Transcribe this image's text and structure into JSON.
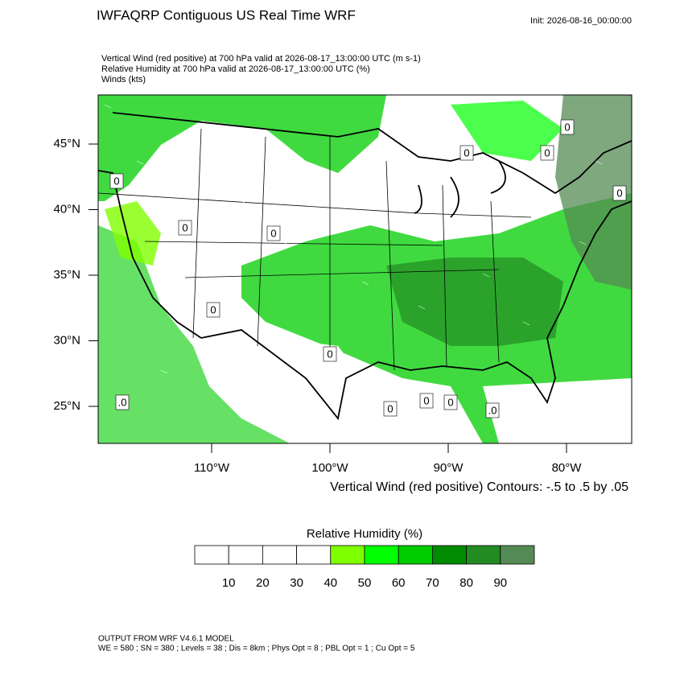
{
  "header": {
    "title": "IWFAQRP Contiguous US Real Time WRF",
    "init": "Init: 2026-08-16_00:00:00"
  },
  "subtitles": [
    "Vertical Wind (red positive) at 700 hPa valid at 2026-08-17_13:00:00 UTC   (m s-1)",
    "Relative Humidity at 700 hPa valid at 2026-08-17_13:00:00 UTC   (%)",
    "Winds   (kts)"
  ],
  "map": {
    "lat_labels": [
      "45°N",
      "40°N",
      "35°N",
      "30°N",
      "25°N"
    ],
    "lon_labels": [
      "110°W",
      "100°W",
      "90°W",
      "80°W"
    ],
    "contour_labels": [
      "0",
      "0",
      "0",
      "0",
      ".0",
      "0",
      "0",
      "0",
      "0",
      "0",
      ".0",
      "0",
      "0",
      "0"
    ],
    "contour_note": "Vertical Wind (red positive) Contours: -.5 to .5 by .05"
  },
  "colorbar": {
    "title": "Relative Humidity  (%)",
    "colors": [
      "#ffffff",
      "#ffffff",
      "#ffffff",
      "#ffffff",
      "#80ff00",
      "#00ff00",
      "#00cd00",
      "#008b00",
      "#228b22",
      "#548b54"
    ],
    "ticks": [
      10,
      20,
      30,
      40,
      50,
      60,
      70,
      80,
      90
    ]
  },
  "footer": {
    "lines": [
      "OUTPUT FROM WRF V4.6.1 MODEL",
      "WE = 580 ; SN = 380 ; Levels = 38 ; Dis = 8km ; Phys Opt = 8 ; PBL Opt = 1 ; Cu Opt = 5"
    ]
  }
}
